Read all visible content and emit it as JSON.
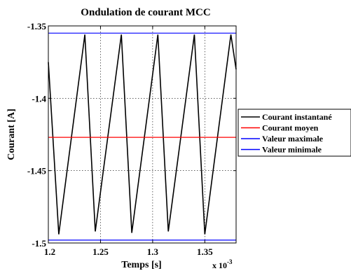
{
  "chart_data": {
    "type": "line",
    "title": "Ondulation de courant MCC",
    "xlabel": "Temps [s]",
    "ylabel": "Courant [A]",
    "x_multiplier_label": "x 10",
    "x_multiplier_exponent": "-3",
    "xlim": [
      0.0012,
      0.00138
    ],
    "ylim": [
      -1.5,
      -1.35
    ],
    "x_ticks": [
      0.0012,
      0.00125,
      0.0013,
      0.00135
    ],
    "x_tick_labels": [
      "1.2",
      "1.25",
      "1.3",
      "1.35"
    ],
    "y_ticks": [
      -1.5,
      -1.45,
      -1.4,
      -1.35
    ],
    "y_tick_labels": [
      "-1.5",
      "-1.45",
      "-1.4",
      "-1.35"
    ],
    "grid": true,
    "legend_position": "right, outside plot area",
    "series": [
      {
        "name": "Courant instantané",
        "color": "#000000",
        "x": [
          0.0012,
          0.00121,
          0.001235,
          0.001245,
          0.00127,
          0.00128,
          0.001305,
          0.001315,
          0.00134,
          0.00135,
          0.001375,
          0.00138
        ],
        "values": [
          -1.375,
          -1.494,
          -1.356,
          -1.492,
          -1.356,
          -1.493,
          -1.356,
          -1.492,
          -1.356,
          -1.494,
          -1.356,
          -1.38
        ]
      },
      {
        "name": "Courant moyen",
        "color": "#ff0000",
        "x": [
          0.0012,
          0.00138
        ],
        "values": [
          -1.427,
          -1.427
        ]
      },
      {
        "name": "Valeur maximale",
        "color": "#0000ff",
        "x": [
          0.0012,
          0.00138
        ],
        "values": [
          -1.355,
          -1.355
        ]
      },
      {
        "name": "Valeur minimale",
        "color": "#0000ff",
        "x": [
          0.0012,
          0.00138
        ],
        "values": [
          -1.498,
          -1.498
        ]
      }
    ]
  }
}
